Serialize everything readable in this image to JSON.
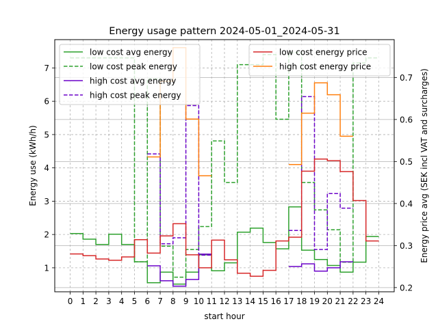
{
  "chart_data": {
    "type": "line",
    "title": "Energy usage pattern 2024-05-01_2024-05-31",
    "xlabel": "start hour",
    "ylabel": "Energy use (kWh/h)",
    "y2label": "Energy price avg (SEK incl VAT and surcharges)",
    "xlim": [
      -1.2,
      25.2
    ],
    "ylim": [
      0.28,
      7.85
    ],
    "y2lim": [
      0.19,
      0.79
    ],
    "x_ticks": [
      "0",
      "1",
      "2",
      "3",
      "4",
      "5",
      "6",
      "7",
      "8",
      "9",
      "10",
      "11",
      "12",
      "13",
      "14",
      "15",
      "16",
      "17",
      "18",
      "19",
      "20",
      "21",
      "22",
      "23",
      "24"
    ],
    "y_ticks": [
      "1",
      "2",
      "3",
      "4",
      "5",
      "6",
      "7"
    ],
    "y2_ticks": [
      "0.2",
      "0.3",
      "0.4",
      "0.5",
      "0.6",
      "0.7"
    ],
    "grid": true,
    "legend_left_placement": "top-left",
    "legend_right_placement": "top-right",
    "step_x": [
      0,
      1,
      2,
      3,
      4,
      5,
      6,
      7,
      8,
      9,
      10,
      11,
      12,
      13,
      14,
      15,
      16,
      17,
      18,
      19,
      20,
      21,
      22,
      23,
      24
    ],
    "series": [
      {
        "name": "low cost avg energy",
        "axis": "left",
        "color": "#2ca02c",
        "dash": "solid",
        "values": [
          2.03,
          1.86,
          1.7,
          2.01,
          1.7,
          1.18,
          0.55,
          0.87,
          0.51,
          0.87,
          1.39,
          0.91,
          1.15,
          2.07,
          2.19,
          1.76,
          1.57,
          2.83,
          1.53,
          1.25,
          1.07,
          0.87,
          1.17,
          1.94,
          1.94
        ]
      },
      {
        "name": "low cost peak energy",
        "axis": "left",
        "color": "#2ca02c",
        "dash": "dashed",
        "values": [
          7.3,
          7.3,
          7.3,
          7.3,
          7.3,
          1.18,
          6.67,
          1.65,
          0.72,
          1.55,
          2.24,
          4.81,
          3.56,
          7.1,
          7.1,
          7.4,
          5.46,
          7.46,
          3.56,
          2.74,
          2.14,
          1.17,
          7.15,
          7.3,
          7.3
        ]
      },
      {
        "name": "high cost avg energy",
        "axis": "left",
        "color": "#6a00c8",
        "dash": "solid",
        "values": [
          null,
          null,
          null,
          null,
          null,
          null,
          1.06,
          0.61,
          0.45,
          0.65,
          1.41,
          null,
          null,
          null,
          null,
          null,
          null,
          1.04,
          1.12,
          0.9,
          1.0,
          1.18,
          null,
          null,
          null
        ]
      },
      {
        "name": "high cost peak energy",
        "axis": "left",
        "color": "#6a00c8",
        "dash": "dashed",
        "values": [
          null,
          null,
          null,
          null,
          null,
          null,
          4.42,
          1.72,
          1.9,
          5.87,
          1.38,
          null,
          null,
          null,
          null,
          null,
          null,
          2.12,
          6.14,
          1.55,
          3.23,
          2.79,
          null,
          null,
          null
        ]
      },
      {
        "name": "low cost energy price",
        "axis": "right",
        "color": "#d62728",
        "dash": "solid",
        "values": [
          0.28,
          0.276,
          0.268,
          0.265,
          0.273,
          0.314,
          0.282,
          0.323,
          0.352,
          0.278,
          0.247,
          0.313,
          0.266,
          0.234,
          0.227,
          0.241,
          0.311,
          0.32,
          0.477,
          0.506,
          0.502,
          0.476,
          0.407,
          0.311,
          0.311
        ]
      },
      {
        "name": "high cost energy price",
        "axis": "right",
        "color": "#ff7f0e",
        "dash": "solid",
        "values": [
          null,
          null,
          null,
          null,
          null,
          null,
          0.511,
          0.691,
          0.771,
          0.601,
          0.466,
          null,
          null,
          null,
          null,
          null,
          null,
          0.493,
          0.615,
          0.687,
          0.659,
          0.56,
          null,
          null,
          null
        ]
      }
    ]
  }
}
